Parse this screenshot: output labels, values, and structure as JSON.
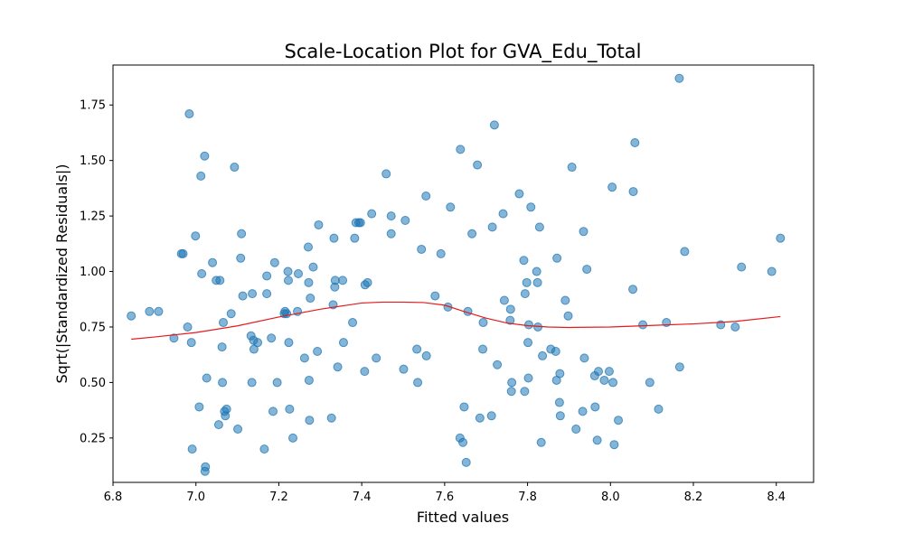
{
  "chart_data": {
    "type": "scatter",
    "title": "Scale-Location Plot for GVA_Edu_Total",
    "xlabel": "Fitted values",
    "ylabel": "Sqrt(|Standardized Residuals|)",
    "xlim": [
      6.8,
      8.49
    ],
    "ylim": [
      0.05,
      1.93
    ],
    "x_ticks": [
      {
        "value": 6.8,
        "label": "6.8"
      },
      {
        "value": 7.0,
        "label": "7.0"
      },
      {
        "value": 7.2,
        "label": "7.2"
      },
      {
        "value": 7.4,
        "label": "7.4"
      },
      {
        "value": 7.6,
        "label": "7.6"
      },
      {
        "value": 7.8,
        "label": "7.8"
      },
      {
        "value": 8.0,
        "label": "8.0"
      },
      {
        "value": 8.2,
        "label": "8.2"
      },
      {
        "value": 8.4,
        "label": "8.4"
      }
    ],
    "y_ticks": [
      {
        "value": 0.25,
        "label": "0.25"
      },
      {
        "value": 0.5,
        "label": "0.50"
      },
      {
        "value": 0.75,
        "label": "0.75"
      },
      {
        "value": 1.0,
        "label": "1.00"
      },
      {
        "value": 1.25,
        "label": "1.25"
      },
      {
        "value": 1.5,
        "label": "1.50"
      },
      {
        "value": 1.75,
        "label": "1.75"
      }
    ],
    "grid": false,
    "colors": {
      "points": "#1f77b4",
      "trend": "#e41a1c"
    },
    "series": [
      {
        "values": [
          [
            6.844,
            0.8
          ],
          [
            6.888,
            0.82
          ],
          [
            6.91,
            0.82
          ],
          [
            6.947,
            0.7
          ],
          [
            6.965,
            1.08
          ],
          [
            6.969,
            1.08
          ],
          [
            6.98,
            0.75
          ],
          [
            6.984,
            1.71
          ],
          [
            6.989,
            0.68
          ],
          [
            6.991,
            0.2
          ],
          [
            6.999,
            1.16
          ],
          [
            7.008,
            0.39
          ],
          [
            7.012,
            1.43
          ],
          [
            7.014,
            0.99
          ],
          [
            7.021,
            1.52
          ],
          [
            7.022,
            0.1
          ],
          [
            7.023,
            0.12
          ],
          [
            7.026,
            0.52
          ],
          [
            7.04,
            1.04
          ],
          [
            7.049,
            0.96
          ],
          [
            7.055,
            0.31
          ],
          [
            7.058,
            0.96
          ],
          [
            7.063,
            0.66
          ],
          [
            7.064,
            0.5
          ],
          [
            7.066,
            0.77
          ],
          [
            7.069,
            0.37
          ],
          [
            7.071,
            0.35
          ],
          [
            7.074,
            0.38
          ],
          [
            7.085,
            0.81
          ],
          [
            7.093,
            1.47
          ],
          [
            7.101,
            0.29
          ],
          [
            7.108,
            1.06
          ],
          [
            7.11,
            1.17
          ],
          [
            7.113,
            0.89
          ],
          [
            7.133,
            0.71
          ],
          [
            7.135,
            0.5
          ],
          [
            7.136,
            0.9
          ],
          [
            7.139,
            0.69
          ],
          [
            7.14,
            0.65
          ],
          [
            7.149,
            0.68
          ],
          [
            7.165,
            0.2
          ],
          [
            7.171,
            0.98
          ],
          [
            7.171,
            0.9
          ],
          [
            7.182,
            0.7
          ],
          [
            7.186,
            0.37
          ],
          [
            7.19,
            1.04
          ],
          [
            7.196,
            0.5
          ],
          [
            7.213,
            0.81
          ],
          [
            7.215,
            0.82
          ],
          [
            7.219,
            0.81
          ],
          [
            7.222,
            1.0
          ],
          [
            7.223,
            0.96
          ],
          [
            7.224,
            0.68
          ],
          [
            7.226,
            0.38
          ],
          [
            7.234,
            0.25
          ],
          [
            7.245,
            0.82
          ],
          [
            7.247,
            0.99
          ],
          [
            7.262,
            0.61
          ],
          [
            7.271,
            1.11
          ],
          [
            7.272,
            0.95
          ],
          [
            7.273,
            0.51
          ],
          [
            7.274,
            0.33
          ],
          [
            7.276,
            0.88
          ],
          [
            7.283,
            1.02
          ],
          [
            7.293,
            0.64
          ],
          [
            7.296,
            1.21
          ],
          [
            7.327,
            0.34
          ],
          [
            7.331,
            0.85
          ],
          [
            7.333,
            1.15
          ],
          [
            7.335,
            0.93
          ],
          [
            7.336,
            0.96
          ],
          [
            7.342,
            0.57
          ],
          [
            7.354,
            0.96
          ],
          [
            7.356,
            0.68
          ],
          [
            7.378,
            0.77
          ],
          [
            7.383,
            1.15
          ],
          [
            7.386,
            1.22
          ],
          [
            7.393,
            1.22
          ],
          [
            7.397,
            1.22
          ],
          [
            7.407,
            0.55
          ],
          [
            7.408,
            0.94
          ],
          [
            7.414,
            0.95
          ],
          [
            7.424,
            1.26
          ],
          [
            7.435,
            0.61
          ],
          [
            7.459,
            1.44
          ],
          [
            7.471,
            1.17
          ],
          [
            7.471,
            1.25
          ],
          [
            7.501,
            0.56
          ],
          [
            7.505,
            1.23
          ],
          [
            7.533,
            0.65
          ],
          [
            7.535,
            0.5
          ],
          [
            7.544,
            1.1
          ],
          [
            7.555,
            1.34
          ],
          [
            7.556,
            0.62
          ],
          [
            7.577,
            0.89
          ],
          [
            7.591,
            1.08
          ],
          [
            7.608,
            0.84
          ],
          [
            7.614,
            1.29
          ],
          [
            7.637,
            0.25
          ],
          [
            7.638,
            1.55
          ],
          [
            7.644,
            0.23
          ],
          [
            7.647,
            0.39
          ],
          [
            7.652,
            0.14
          ],
          [
            7.656,
            0.82
          ],
          [
            7.666,
            1.17
          ],
          [
            7.679,
            1.48
          ],
          [
            7.685,
            0.34
          ],
          [
            7.692,
            0.65
          ],
          [
            7.693,
            0.77
          ],
          [
            7.713,
            0.35
          ],
          [
            7.715,
            1.2
          ],
          [
            7.72,
            1.66
          ],
          [
            7.727,
            0.58
          ],
          [
            7.741,
            1.26
          ],
          [
            7.744,
            0.87
          ],
          [
            7.758,
            0.78
          ],
          [
            7.759,
            0.83
          ],
          [
            7.761,
            0.46
          ],
          [
            7.762,
            0.5
          ],
          [
            7.78,
            1.35
          ],
          [
            7.791,
            1.05
          ],
          [
            7.793,
            0.46
          ],
          [
            7.794,
            0.9
          ],
          [
            7.798,
            0.95
          ],
          [
            7.801,
            0.68
          ],
          [
            7.802,
            0.52
          ],
          [
            7.803,
            0.76
          ],
          [
            7.808,
            1.29
          ],
          [
            7.822,
            1.0
          ],
          [
            7.824,
            0.95
          ],
          [
            7.825,
            0.75
          ],
          [
            7.829,
            1.2
          ],
          [
            7.833,
            0.23
          ],
          [
            7.836,
            0.62
          ],
          [
            7.856,
            0.65
          ],
          [
            7.868,
            0.64
          ],
          [
            7.87,
            0.51
          ],
          [
            7.871,
            1.06
          ],
          [
            7.877,
            0.41
          ],
          [
            7.878,
            0.54
          ],
          [
            7.879,
            0.35
          ],
          [
            7.891,
            0.87
          ],
          [
            7.898,
            0.8
          ],
          [
            7.907,
            1.47
          ],
          [
            7.917,
            0.29
          ],
          [
            7.933,
            0.37
          ],
          [
            7.935,
            1.18
          ],
          [
            7.937,
            0.61
          ],
          [
            7.943,
            1.01
          ],
          [
            7.962,
            0.53
          ],
          [
            7.963,
            0.39
          ],
          [
            7.968,
            0.24
          ],
          [
            7.971,
            0.55
          ],
          [
            7.985,
            0.51
          ],
          [
            7.997,
            0.55
          ],
          [
            8.004,
            1.38
          ],
          [
            8.006,
            0.5
          ],
          [
            8.009,
            0.22
          ],
          [
            8.019,
            0.33
          ],
          [
            8.054,
            0.92
          ],
          [
            8.055,
            1.36
          ],
          [
            8.059,
            1.58
          ],
          [
            8.078,
            0.76
          ],
          [
            8.095,
            0.5
          ],
          [
            8.116,
            0.38
          ],
          [
            8.135,
            0.77
          ],
          [
            8.166,
            1.87
          ],
          [
            8.167,
            0.57
          ],
          [
            8.179,
            1.09
          ],
          [
            8.266,
            0.76
          ],
          [
            8.301,
            0.75
          ],
          [
            8.316,
            1.02
          ],
          [
            8.389,
            1.0
          ],
          [
            8.41,
            1.15
          ]
        ]
      }
    ],
    "trend_line": [
      [
        6.844,
        0.695
      ],
      [
        6.9,
        0.705
      ],
      [
        7.0,
        0.725
      ],
      [
        7.1,
        0.755
      ],
      [
        7.2,
        0.795
      ],
      [
        7.3,
        0.83
      ],
      [
        7.4,
        0.858
      ],
      [
        7.45,
        0.862
      ],
      [
        7.5,
        0.862
      ],
      [
        7.55,
        0.86
      ],
      [
        7.6,
        0.848
      ],
      [
        7.65,
        0.818
      ],
      [
        7.7,
        0.79
      ],
      [
        7.75,
        0.768
      ],
      [
        7.8,
        0.756
      ],
      [
        7.85,
        0.75
      ],
      [
        7.9,
        0.748
      ],
      [
        8.0,
        0.75
      ],
      [
        8.1,
        0.757
      ],
      [
        8.2,
        0.764
      ],
      [
        8.3,
        0.775
      ],
      [
        8.41,
        0.797
      ]
    ]
  }
}
